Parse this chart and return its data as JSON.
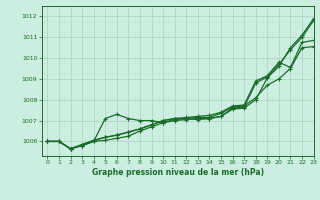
{
  "xlabel": "Graphe pression niveau de la mer (hPa)",
  "xlim": [
    -0.5,
    23
  ],
  "ylim": [
    1005.3,
    1012.5
  ],
  "yticks": [
    1006,
    1007,
    1008,
    1009,
    1010,
    1011,
    1012
  ],
  "xticks": [
    0,
    1,
    2,
    3,
    4,
    5,
    6,
    7,
    8,
    9,
    10,
    11,
    12,
    13,
    14,
    15,
    16,
    17,
    18,
    19,
    20,
    21,
    22,
    23
  ],
  "bg_color": "#cceee0",
  "grid_color": "#aad4c0",
  "line_color": "#1a6b2a",
  "line1": [
    1006.0,
    1006.0,
    1005.65,
    1005.8,
    1006.0,
    1007.1,
    1007.3,
    1007.1,
    1007.0,
    1007.0,
    1006.9,
    1007.05,
    1007.1,
    1007.05,
    1007.1,
    1007.2,
    1007.6,
    1007.65,
    1008.8,
    1009.1,
    1009.7,
    1010.4,
    1011.0,
    1011.8
  ],
  "line2": [
    1006.0,
    1006.0,
    1005.65,
    1005.8,
    1006.0,
    1006.05,
    1006.15,
    1006.25,
    1006.5,
    1006.7,
    1006.9,
    1007.0,
    1007.05,
    1007.1,
    1007.1,
    1007.2,
    1007.55,
    1007.6,
    1008.0,
    1009.05,
    1009.6,
    1010.5,
    1011.1,
    1011.9
  ],
  "line3": [
    1006.0,
    1006.0,
    1005.65,
    1005.85,
    1006.05,
    1006.2,
    1006.3,
    1006.45,
    1006.6,
    1006.8,
    1007.0,
    1007.1,
    1007.15,
    1007.2,
    1007.25,
    1007.4,
    1007.7,
    1007.75,
    1008.9,
    1009.15,
    1009.8,
    1009.55,
    1010.75,
    1010.85
  ],
  "line4": [
    1006.0,
    1006.0,
    1005.65,
    1005.85,
    1006.05,
    1006.2,
    1006.3,
    1006.45,
    1006.6,
    1006.8,
    1007.0,
    1007.1,
    1007.1,
    1007.15,
    1007.15,
    1007.35,
    1007.65,
    1007.7,
    1008.1,
    1008.7,
    1009.0,
    1009.5,
    1010.5,
    1010.55
  ],
  "marker": "+",
  "markersize": 3.5,
  "linewidth": 0.9
}
